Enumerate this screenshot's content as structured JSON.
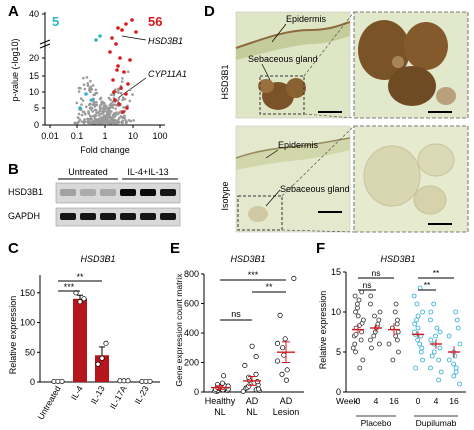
{
  "panels": {
    "A": "A",
    "B": "B",
    "C": "C",
    "D": "D",
    "E": "E",
    "F": "F"
  },
  "panel_a": {
    "count_down": "5",
    "count_up": "56",
    "gene_1": "HSD3B1",
    "gene_2": "CYP11A1",
    "ylabel": "p-value (-log10)",
    "xlabel": "Fold change",
    "xticks": [
      "0.01",
      "0.1",
      "1",
      "10",
      "100"
    ],
    "yticks": [
      "0",
      "5",
      "10",
      "15",
      "20",
      "40"
    ],
    "colors": {
      "up": "#d7191c",
      "down": "#2bb5c8",
      "ns": "#9a9a9a"
    }
  },
  "panel_b": {
    "conditions": [
      "Untreated",
      "IL-4+IL-13"
    ],
    "rows": [
      "HSD3B1",
      "GAPDH"
    ]
  },
  "panel_c": {
    "title": "HSD3B1",
    "ylabel": "Relative expression",
    "sig": [
      "***",
      "**"
    ]
  },
  "panel_d": {
    "row_labels": [
      "HSD3B1",
      "Isotype"
    ],
    "ann_top": [
      "Epidermis",
      "Sebaceous gland"
    ],
    "ann_bottom": [
      "Epidermis",
      "Sebaceous gland"
    ]
  },
  "panel_e": {
    "title": "HSD3B1",
    "ylabel": "Gene expression count matrix",
    "sig": [
      "ns",
      "**",
      "***"
    ],
    "groups": [
      {
        "line1": "Healthy",
        "line2": "NL"
      },
      {
        "line1": "AD",
        "line2": "NL"
      },
      {
        "line1": "AD",
        "line2": "Lesion"
      }
    ]
  },
  "panel_f": {
    "title": "HSD3B1",
    "ylabel": "Relative expression",
    "week_label": "Week:",
    "weeks": [
      "0",
      "4",
      "16",
      "0",
      "4",
      "16"
    ],
    "groups": [
      "Placebo",
      "Dupilumab"
    ],
    "sig": [
      "ns",
      "ns",
      "**",
      "**"
    ],
    "colors": {
      "placebo": "#333333",
      "dupilumab": "#2aa8d8",
      "mean": "#d7191c"
    }
  },
  "chart_data": [
    {
      "id": "C",
      "type": "bar",
      "title": "HSD3B1",
      "ylabel": "Relative expression",
      "categories": [
        "Untreated",
        "IL-4",
        "IL-13",
        "IL-17A",
        "IL-23"
      ],
      "values": [
        1,
        140,
        45,
        2,
        1
      ],
      "errors": [
        0,
        6,
        14,
        0,
        0
      ],
      "points": [
        [
          1,
          1,
          1
        ],
        [
          150,
          135,
          140
        ],
        [
          30,
          40,
          65
        ],
        [
          2,
          2,
          2
        ],
        [
          1,
          1,
          1
        ]
      ],
      "yticks": [
        0,
        50,
        100,
        150
      ],
      "ylim": [
        0,
        180
      ],
      "color": "#b5161d"
    },
    {
      "id": "E",
      "type": "scatter",
      "title": "HSD3B1",
      "ylabel": "Gene expression count matrix",
      "categories": [
        "Healthy NL",
        "AD NL",
        "AD Lesion"
      ],
      "means": [
        30,
        75,
        270
      ],
      "sems": [
        12,
        30,
        70
      ],
      "points": [
        [
          5,
          8,
          10,
          12,
          15,
          18,
          20,
          25,
          30,
          35,
          40,
          45,
          50,
          60,
          110
        ],
        [
          5,
          10,
          15,
          20,
          25,
          30,
          40,
          50,
          60,
          70,
          80,
          100,
          120,
          180,
          240,
          310
        ],
        [
          80,
          120,
          150,
          210,
          250,
          300,
          330,
          360,
          520,
          770
        ]
      ],
      "yticks": [
        0,
        200,
        400,
        600,
        800
      ],
      "ylim": [
        0,
        800
      ]
    },
    {
      "id": "F",
      "type": "scatter",
      "title": "HSD3B1",
      "ylabel": "Relative expression",
      "categories": [
        "Placebo 0",
        "Placebo 4",
        "Placebo 16",
        "Dupilumab 0",
        "Dupilumab 4",
        "Dupilumab 16"
      ],
      "means": [
        7.8,
        8.0,
        7.8,
        7.2,
        6.0,
        5.0
      ],
      "sems": [
        0.6,
        0.5,
        0.8,
        0.4,
        0.6,
        0.7
      ],
      "points": [
        [
          3,
          4,
          5,
          5.5,
          6,
          6.5,
          7,
          7.2,
          7.5,
          8,
          8.3,
          8.6,
          9,
          9.5,
          10,
          10.5,
          11,
          11.5,
          12,
          12.5
        ],
        [
          5.5,
          6,
          6.5,
          7,
          7.5,
          8,
          8.2,
          8.5,
          9,
          9.5,
          10,
          11,
          12
        ],
        [
          4,
          5,
          6,
          6.5,
          7,
          7.5,
          8,
          8.5,
          9,
          10,
          11
        ],
        [
          3,
          4,
          5,
          5.5,
          6,
          6.5,
          7,
          7.2,
          7.5,
          8,
          8.5,
          9,
          9.5,
          10,
          11,
          12,
          13
        ],
        [
          1.5,
          2.5,
          3,
          4,
          4.5,
          5,
          5.5,
          6,
          6.5,
          7,
          7.5,
          8,
          9,
          10,
          11
        ],
        [
          1,
          2,
          2.5,
          3,
          3.5,
          4,
          4.5,
          5,
          6,
          7,
          8,
          9,
          10
        ]
      ],
      "yticks": [
        0,
        5,
        10,
        15
      ],
      "ylim": [
        0,
        15
      ]
    }
  ]
}
